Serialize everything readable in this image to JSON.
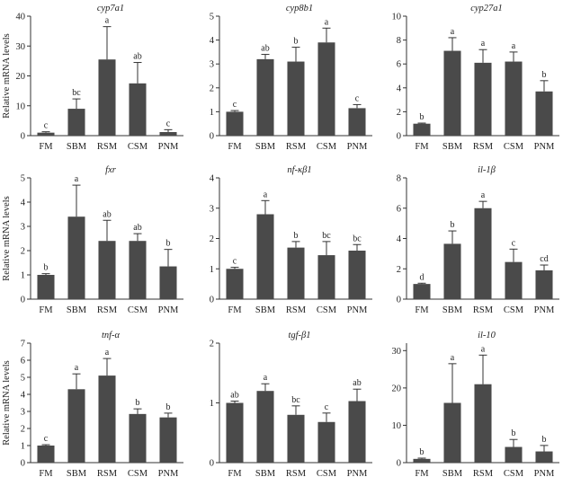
{
  "figure": {
    "bar_color": "#4a4a4a",
    "axis_color": "#333333"
  },
  "chart_data": [
    {
      "type": "bar",
      "title": "cyp7a1",
      "ylabel": "Relative mRNA levels",
      "categories": [
        "FM",
        "SBM",
        "RSM",
        "CSM",
        "PNM"
      ],
      "values": [
        1.0,
        9.0,
        25.5,
        17.5,
        1.2
      ],
      "errors": [
        0.3,
        3.3,
        11.0,
        7.0,
        0.8
      ],
      "letters": [
        "c",
        "bc",
        "a",
        "ab",
        "c"
      ],
      "yticks": [
        0,
        10,
        20,
        30,
        40
      ],
      "ylim": [
        0,
        40
      ]
    },
    {
      "type": "bar",
      "title": "cyp8b1",
      "ylabel": "",
      "categories": [
        "FM",
        "SBM",
        "RSM",
        "CSM",
        "PNM"
      ],
      "values": [
        1.0,
        3.2,
        3.1,
        3.9,
        1.15
      ],
      "errors": [
        0.05,
        0.2,
        0.6,
        0.6,
        0.15
      ],
      "letters": [
        "c",
        "ab",
        "b",
        "a",
        "c"
      ],
      "yticks": [
        0,
        1,
        2,
        3,
        4,
        5
      ],
      "ylim": [
        0,
        5
      ]
    },
    {
      "type": "bar",
      "title": "cyp27a1",
      "ylabel": "",
      "categories": [
        "FM",
        "SBM",
        "RSM",
        "CSM",
        "PNM"
      ],
      "values": [
        1.0,
        7.1,
        6.1,
        6.2,
        3.7
      ],
      "errors": [
        0.05,
        1.1,
        1.1,
        0.8,
        0.9
      ],
      "letters": [
        "b",
        "a",
        "a",
        "a",
        "b"
      ],
      "yticks": [
        0,
        2,
        4,
        6,
        8,
        10
      ],
      "ylim": [
        0,
        10
      ]
    },
    {
      "type": "bar",
      "title": "fxr",
      "ylabel": "Relative mRNA levels",
      "categories": [
        "FM",
        "SBM",
        "RSM",
        "CSM",
        "PNM"
      ],
      "values": [
        1.0,
        3.4,
        2.4,
        2.4,
        1.35
      ],
      "errors": [
        0.05,
        1.3,
        0.85,
        0.3,
        0.7
      ],
      "letters": [
        "b",
        "a",
        "ab",
        "ab",
        "b"
      ],
      "yticks": [
        0,
        1,
        2,
        3,
        4,
        5
      ],
      "ylim": [
        0,
        5
      ]
    },
    {
      "type": "bar",
      "title": "nf-κβ1",
      "ylabel": "",
      "categories": [
        "FM",
        "SBM",
        "RSM",
        "CSM",
        "PNM"
      ],
      "values": [
        1.0,
        2.8,
        1.7,
        1.45,
        1.6
      ],
      "errors": [
        0.05,
        0.45,
        0.2,
        0.45,
        0.2
      ],
      "letters": [
        "c",
        "a",
        "b",
        "bc",
        "bc"
      ],
      "yticks": [
        0,
        1,
        2,
        3,
        4
      ],
      "ylim": [
        0,
        4
      ]
    },
    {
      "type": "bar",
      "title": "il-1β",
      "ylabel": "",
      "categories": [
        "FM",
        "SBM",
        "RSM",
        "CSM",
        "PNM"
      ],
      "values": [
        1.0,
        3.65,
        6.0,
        2.45,
        1.9
      ],
      "errors": [
        0.05,
        0.85,
        0.45,
        0.85,
        0.35
      ],
      "letters": [
        "d",
        "b",
        "a",
        "c",
        "cd"
      ],
      "yticks": [
        0,
        2,
        4,
        6,
        8
      ],
      "ylim": [
        0,
        8
      ]
    },
    {
      "type": "bar",
      "title": "tnf-α",
      "ylabel": "Relative mRNA levels",
      "categories": [
        "FM",
        "SBM",
        "RSM",
        "CSM",
        "PNM"
      ],
      "values": [
        1.0,
        4.3,
        5.1,
        2.85,
        2.65
      ],
      "errors": [
        0.05,
        0.9,
        1.0,
        0.3,
        0.25
      ],
      "letters": [
        "c",
        "a",
        "a",
        "b",
        "b"
      ],
      "yticks": [
        0,
        1,
        2,
        3,
        4,
        5,
        6,
        7
      ],
      "ylim": [
        0,
        7
      ]
    },
    {
      "type": "bar",
      "title": "tgf-β1",
      "ylabel": "",
      "categories": [
        "FM",
        "SBM",
        "RSM",
        "CSM",
        "PNM"
      ],
      "values": [
        1.0,
        1.2,
        0.8,
        0.68,
        1.03
      ],
      "errors": [
        0.03,
        0.12,
        0.15,
        0.15,
        0.2
      ],
      "letters": [
        "ab",
        "a",
        "bc",
        "c",
        "ab"
      ],
      "yticks": [
        0,
        1,
        2
      ],
      "ylim": [
        0,
        2
      ]
    },
    {
      "type": "bar",
      "title": "il-10",
      "ylabel": "",
      "categories": [
        "FM",
        "SBM",
        "RSM",
        "CSM",
        "PNM"
      ],
      "values": [
        1.0,
        16.0,
        21.0,
        4.2,
        3.0
      ],
      "errors": [
        0.2,
        10.5,
        7.8,
        2.0,
        1.6
      ],
      "letters": [
        "b",
        "a",
        "a",
        "b",
        "b"
      ],
      "yticks": [
        0,
        10,
        20,
        30
      ],
      "ylim": [
        0,
        32
      ]
    }
  ]
}
